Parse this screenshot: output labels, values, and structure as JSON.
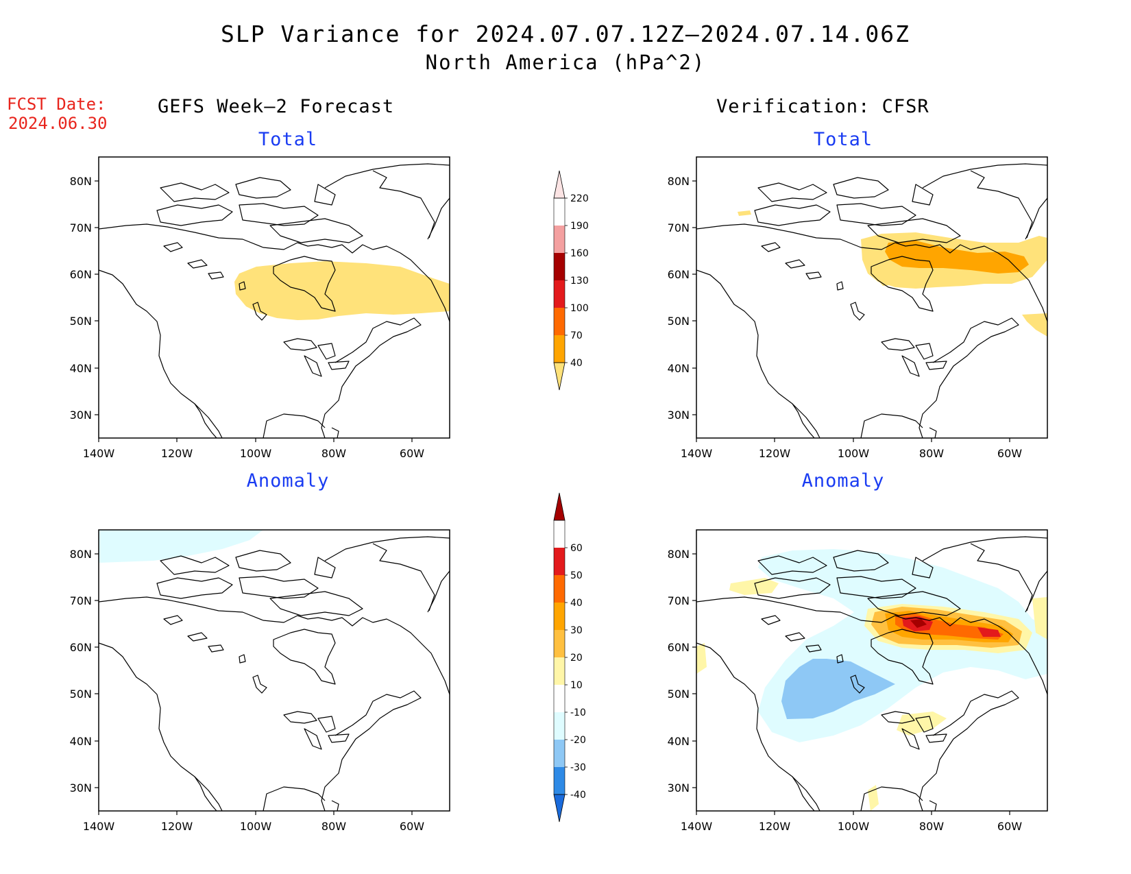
{
  "title": "SLP Variance for 2024.07.07.12Z–2024.07.14.06Z",
  "subtitle": "North America (hPa^2)",
  "fcst_date_label": "FCST Date:",
  "fcst_date": "2024.06.30",
  "left_header": "GEFS Week–2 Forecast",
  "right_header": "Verification: CFSR",
  "panels": {
    "top_left_title": "Total",
    "top_right_title": "Total",
    "bottom_left_title": "Anomaly",
    "bottom_right_title": "Anomaly"
  },
  "axes": {
    "lat_ticks": [
      "80N",
      "70N",
      "60N",
      "50N",
      "40N",
      "30N"
    ],
    "lon_ticks": [
      "140W",
      "120W",
      "100W",
      "80W",
      "60W"
    ]
  },
  "total_colorbar": {
    "levels": [
      "40",
      "70",
      "100",
      "130",
      "160",
      "190",
      "220"
    ],
    "colors": [
      "#ffe27a",
      "#ffa500",
      "#ff6a00",
      "#e31a1c",
      "#a50000",
      "#f4a0a0",
      "#fce4e4"
    ]
  },
  "anomaly_colorbar": {
    "levels": [
      "-40",
      "-30",
      "-20",
      "-10",
      "10",
      "20",
      "30",
      "40",
      "50",
      "60"
    ],
    "colors": [
      "#1a6bdc",
      "#2e8ae6",
      "#8ec8f5",
      "#dffcff",
      "#ffffff",
      "#fff6a8",
      "#ffc040",
      "#ffa500",
      "#ff6a00",
      "#e31a1c",
      "#a50000"
    ]
  },
  "colors": {
    "title": "#000000",
    "fcst": "#e8241c",
    "panel_title": "#1a3cf2",
    "coast": "#000000"
  }
}
